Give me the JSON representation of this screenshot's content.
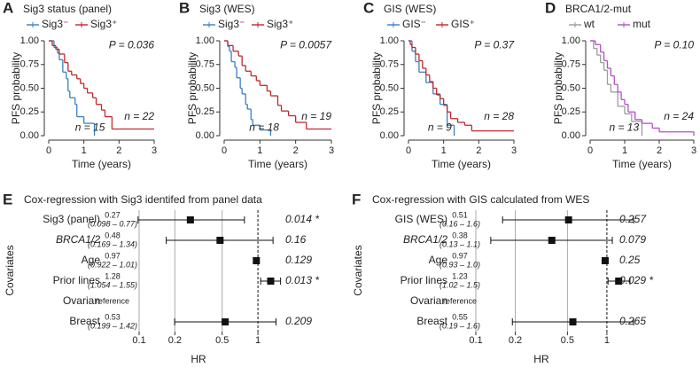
{
  "chart_data": [
    {
      "type": "step",
      "panel": "A",
      "title": "Sig3 status (panel)",
      "annotation": "P = 0.036",
      "xlabel": "Time (years)",
      "ylabel": "PFS probability",
      "xlim": [
        0,
        3
      ],
      "ylim": [
        0,
        1
      ],
      "xticks": [
        0,
        1,
        2,
        3
      ],
      "yticks": [
        {
          "value": 0,
          "label": "0.00"
        },
        {
          "value": 0.25,
          "label": "0.25"
        },
        {
          "value": 0.5,
          "label": "0.50"
        },
        {
          "value": 0.75,
          "label": "0.75"
        },
        {
          "value": 1,
          "label": "1.00"
        }
      ],
      "series": [
        {
          "name": "Sig3⁻",
          "color": "#3a7fc1",
          "n_label": "n = 15",
          "x": [
            0,
            0.15,
            0.25,
            0.3,
            0.4,
            0.5,
            0.55,
            0.6,
            0.75,
            0.8,
            1.0,
            1.3
          ],
          "values": [
            1,
            0.93,
            0.87,
            0.8,
            0.67,
            0.6,
            0.47,
            0.4,
            0.33,
            0.2,
            0.13,
            0
          ]
        },
        {
          "name": "Sig3⁺",
          "color": "#c0282c",
          "n_label": "n = 22",
          "x": [
            0,
            0.1,
            0.2,
            0.3,
            0.45,
            0.55,
            0.65,
            0.8,
            0.9,
            1.0,
            1.1,
            1.25,
            1.35,
            1.5,
            1.6,
            1.8,
            3
          ],
          "values": [
            1,
            0.95,
            0.91,
            0.86,
            0.77,
            0.68,
            0.64,
            0.6,
            0.55,
            0.5,
            0.45,
            0.4,
            0.33,
            0.27,
            0.2,
            0.07,
            0.07
          ]
        }
      ]
    },
    {
      "type": "step",
      "panel": "B",
      "title": "Sig3 (WES)",
      "annotation": "P = 0.0057",
      "xlabel": "Time (years)",
      "ylabel": "PFS probability",
      "xlim": [
        0,
        3
      ],
      "ylim": [
        0,
        1
      ],
      "xticks": [
        0,
        1,
        2,
        3
      ],
      "yticks": [
        {
          "value": 0,
          "label": "0.00"
        },
        {
          "value": 0.25,
          "label": "0.25"
        },
        {
          "value": 0.5,
          "label": "0.50"
        },
        {
          "value": 0.75,
          "label": "0.75"
        },
        {
          "value": 1,
          "label": "1.00"
        }
      ],
      "series": [
        {
          "name": "Sig3⁻",
          "color": "#3a7fc1",
          "n_label": "n = 18",
          "x": [
            0,
            0.1,
            0.15,
            0.2,
            0.3,
            0.35,
            0.45,
            0.5,
            0.6,
            0.65,
            0.75,
            0.8,
            1.0,
            1.3
          ],
          "values": [
            1,
            0.94,
            0.89,
            0.78,
            0.72,
            0.61,
            0.5,
            0.44,
            0.33,
            0.28,
            0.17,
            0.11,
            0.06,
            0
          ]
        },
        {
          "name": "Sig3⁺",
          "color": "#c0282c",
          "n_label": "n = 19",
          "x": [
            0,
            0.1,
            0.25,
            0.4,
            0.5,
            0.6,
            0.75,
            0.9,
            1.0,
            1.2,
            1.3,
            1.5,
            1.6,
            1.8,
            2.0,
            2.3,
            3
          ],
          "values": [
            1,
            0.95,
            0.89,
            0.84,
            0.74,
            0.68,
            0.63,
            0.58,
            0.53,
            0.47,
            0.42,
            0.32,
            0.26,
            0.21,
            0.14,
            0.07,
            0.07
          ]
        }
      ]
    },
    {
      "type": "step",
      "panel": "C",
      "title": "GIS (WES)",
      "annotation": "P = 0.37",
      "xlabel": "Time (years)",
      "ylabel": "PFS probability",
      "xlim": [
        0,
        3
      ],
      "ylim": [
        0,
        1
      ],
      "xticks": [
        0,
        1,
        2,
        3
      ],
      "yticks": [
        {
          "value": 0,
          "label": "0.00"
        },
        {
          "value": 0.25,
          "label": "0.25"
        },
        {
          "value": 0.5,
          "label": "0.50"
        },
        {
          "value": 0.75,
          "label": "0.75"
        },
        {
          "value": 1,
          "label": "1.00"
        }
      ],
      "series": [
        {
          "name": "GIS⁻",
          "color": "#3a7fc1",
          "n_label": "n = 9",
          "x": [
            0,
            0.1,
            0.2,
            0.3,
            0.5,
            0.7,
            0.9,
            1.1,
            1.3
          ],
          "values": [
            1,
            0.89,
            0.78,
            0.67,
            0.56,
            0.44,
            0.33,
            0.11,
            0
          ]
        },
        {
          "name": "GIS⁺",
          "color": "#c0282c",
          "n_label": "n = 28",
          "x": [
            0,
            0.05,
            0.1,
            0.2,
            0.3,
            0.4,
            0.5,
            0.6,
            0.7,
            0.8,
            0.9,
            1.0,
            1.1,
            1.2,
            1.4,
            1.6,
            1.8,
            3
          ],
          "values": [
            1,
            0.96,
            0.93,
            0.86,
            0.79,
            0.71,
            0.64,
            0.57,
            0.5,
            0.43,
            0.39,
            0.32,
            0.25,
            0.18,
            0.14,
            0.11,
            0.05,
            0.05
          ]
        }
      ]
    },
    {
      "type": "step",
      "panel": "D",
      "title": "BRCA1/2-mut",
      "annotation": "P = 0.10",
      "xlabel": "Time (years)",
      "ylabel": "PFS probability",
      "xlim": [
        0,
        3
      ],
      "ylim": [
        0,
        1
      ],
      "xticks": [
        0,
        1,
        2,
        3
      ],
      "yticks": [
        {
          "value": 0,
          "label": "0.00"
        },
        {
          "value": 0.25,
          "label": "0.25"
        },
        {
          "value": 0.5,
          "label": "0.50"
        },
        {
          "value": 0.75,
          "label": "0.75"
        },
        {
          "value": 1,
          "label": "1.00"
        }
      ],
      "series": [
        {
          "name": "wt",
          "color": "#9a9a9a",
          "n_label": "n = 13",
          "x": [
            0,
            0.1,
            0.2,
            0.3,
            0.4,
            0.5,
            0.6,
            0.8,
            1.0,
            1.2,
            1.5
          ],
          "values": [
            1,
            0.92,
            0.85,
            0.77,
            0.69,
            0.54,
            0.46,
            0.31,
            0.23,
            0.15,
            0
          ]
        },
        {
          "name": "mut",
          "color": "#b44fc7",
          "n_label": "n = 24",
          "x": [
            0,
            0.15,
            0.3,
            0.4,
            0.5,
            0.6,
            0.7,
            0.8,
            0.9,
            1.0,
            1.1,
            1.3,
            1.5,
            1.8,
            2.0,
            3
          ],
          "values": [
            1,
            0.96,
            0.88,
            0.79,
            0.71,
            0.63,
            0.54,
            0.46,
            0.38,
            0.33,
            0.25,
            0.17,
            0.13,
            0.08,
            0.04,
            0
          ]
        }
      ]
    },
    {
      "type": "forest",
      "panel": "E",
      "title": "Cox-regression with Sig3 identifed from panel data",
      "xlabel": "HR",
      "ylabel": "Covariates",
      "log_x": true,
      "xlim": [
        0.1,
        1.7
      ],
      "xticks": [
        0.1,
        0.2,
        0.5,
        1
      ],
      "reference_line": 1,
      "reference_label": "reference",
      "categories": [
        "Sig3 (panel)",
        "BRCA1/2",
        "Age",
        "Prior lines",
        "Ovarian",
        "Breast"
      ],
      "label_styles": [
        "normal",
        "italic",
        "normal",
        "normal",
        "normal",
        "normal"
      ],
      "values": [
        0.27,
        0.48,
        0.97,
        1.28,
        null,
        0.53
      ],
      "lower": [
        0.098,
        0.169,
        0.922,
        1.054,
        null,
        0.199
      ],
      "upper": [
        0.77,
        1.34,
        1.01,
        1.55,
        null,
        1.42
      ],
      "ci_labels": [
        "(0.098 – 0.77)",
        "(0.169 – 1.34)",
        "(0.922 – 1.01)",
        "(1.054 – 1.55)",
        null,
        "(0.199 – 1.42)"
      ],
      "p_labels": [
        "0.014 *",
        "0.16",
        "0.129",
        "0.013 *",
        null,
        "0.209"
      ]
    },
    {
      "type": "forest",
      "panel": "F",
      "title": "Cox-regression with GIS calculated from WES",
      "xlabel": "HR",
      "ylabel": "Covariates",
      "log_x": true,
      "xlim": [
        0.1,
        1.7
      ],
      "xticks": [
        0.1,
        0.2,
        0.5,
        1
      ],
      "reference_line": 1,
      "reference_label": "reference",
      "categories": [
        "GIS (WES)",
        "BRCA1/2",
        "Age",
        "Prior lines",
        "Ovarian",
        "Breast"
      ],
      "label_styles": [
        "normal",
        "italic",
        "normal",
        "normal",
        "normal",
        "normal"
      ],
      "values": [
        0.51,
        0.38,
        0.97,
        1.23,
        null,
        0.55
      ],
      "lower": [
        0.16,
        0.13,
        0.93,
        1.02,
        null,
        0.19
      ],
      "upper": [
        1.6,
        1.1,
        1.0,
        1.5,
        null,
        1.6
      ],
      "ci_labels": [
        "(0.16 – 1.6)",
        "(0.13 – 1.1)",
        "(0.93 – 1.0)",
        "(1.02 – 1.5)",
        null,
        "(0.19 – 1.6)"
      ],
      "p_labels": [
        "0.257",
        "0.079",
        "0.25",
        "0.029 *",
        null,
        "0.265"
      ]
    }
  ]
}
